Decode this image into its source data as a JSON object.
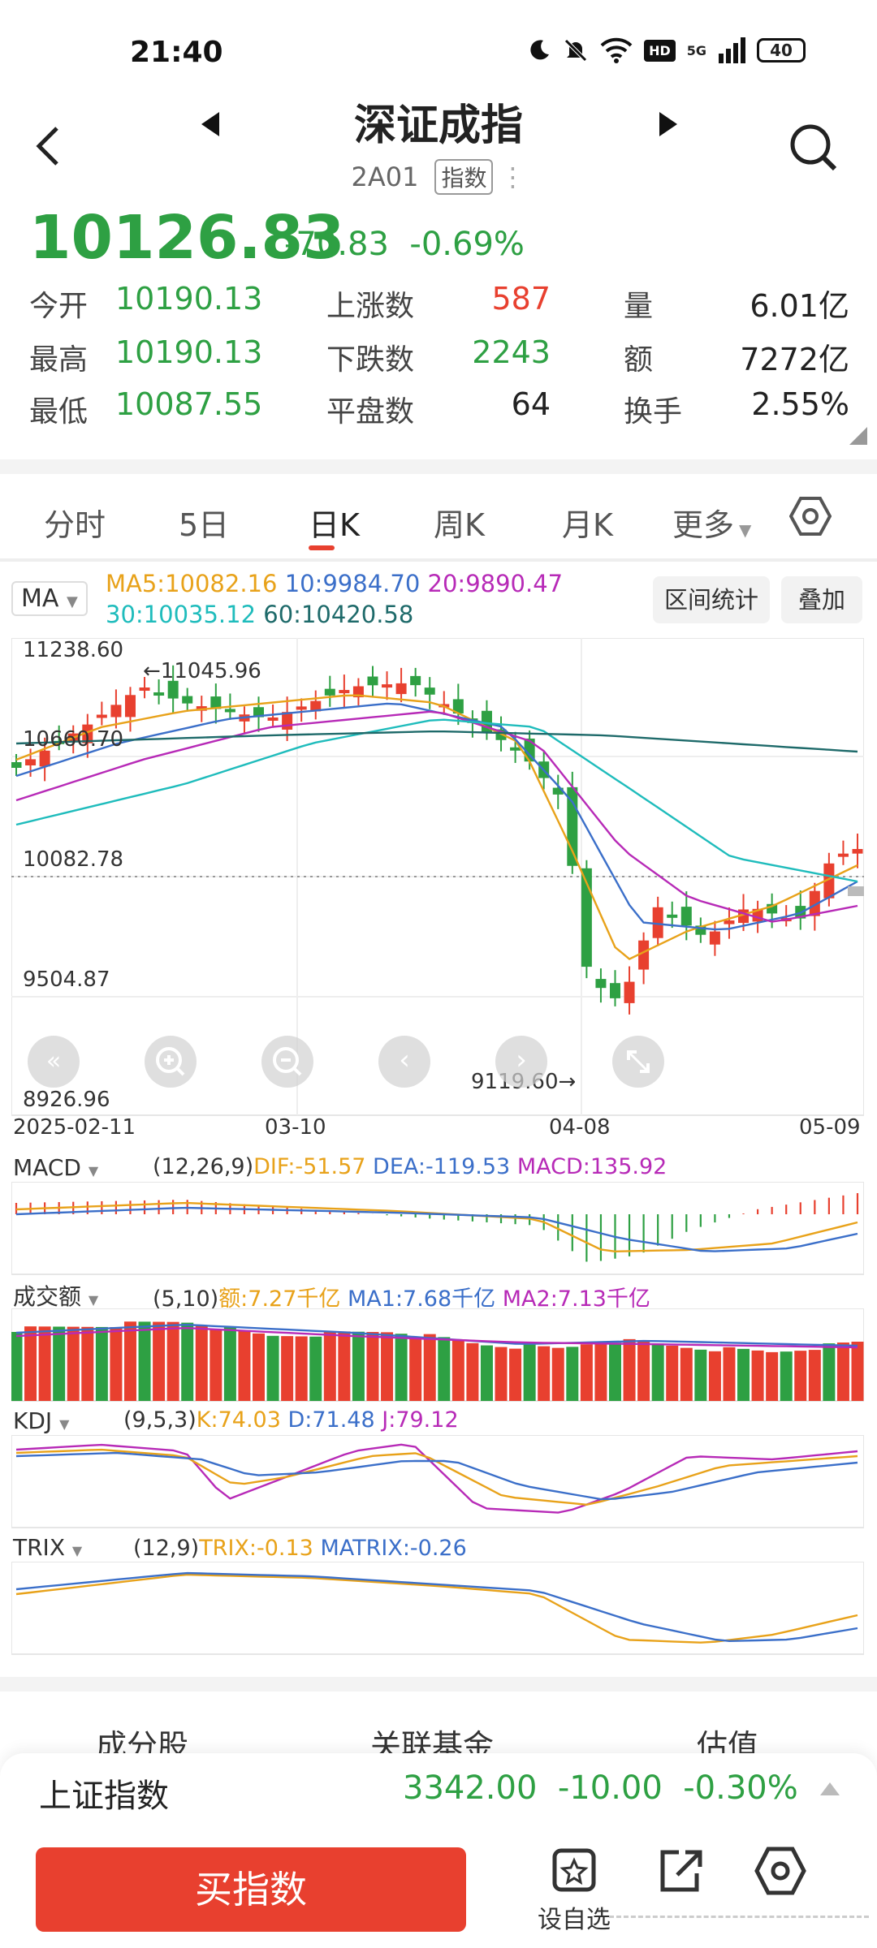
{
  "status": {
    "time": "21:40",
    "battery": "40",
    "hd": "HD",
    "net": "5G"
  },
  "header": {
    "title": "深证成指",
    "code": "2A01",
    "tag": "指数"
  },
  "price": {
    "last": "10126.83",
    "change": "-70.83",
    "change_pct": "-0.69%"
  },
  "stats": [
    {
      "label": "今开",
      "value": "10190.13"
    },
    {
      "label": "最高",
      "value": "10190.13"
    },
    {
      "label": "最低",
      "value": "10087.55"
    },
    {
      "label": "上涨数",
      "value": "587"
    },
    {
      "label": "下跌数",
      "value": "2243"
    },
    {
      "label": "平盘数",
      "value": "64"
    },
    {
      "label": "量",
      "value": "6.01亿"
    },
    {
      "label": "额",
      "value": "7272亿"
    },
    {
      "label": "换手",
      "value": "2.55%"
    }
  ],
  "tabs": [
    "分时",
    "5日",
    "日K",
    "周K",
    "月K",
    "更多"
  ],
  "active_tab": 2,
  "ma": {
    "selector": "MA",
    "ma5": "MA5:10082.16",
    "ma10": "10:9984.70",
    "ma20": "20:9890.47",
    "ma30": "30:10035.12",
    "ma60": "60:10420.58",
    "range_btn": "区间统计",
    "overlay_btn": "叠加"
  },
  "kline": {
    "y_labels": [
      "11238.60",
      "10660.70",
      "10082.78",
      "9504.87",
      "8926.96"
    ],
    "x_labels": [
      "2025-02-11",
      "03-10",
      "04-08",
      "05-09"
    ],
    "high_mark": "←11045.96",
    "low_mark": "9119.60→"
  },
  "chart_data": {
    "type": "candlestick",
    "ylim": [
      8926.96,
      11238.6
    ],
    "x_ticks": [
      "2025-02-11",
      "03-10",
      "04-08",
      "05-09"
    ],
    "annotations": [
      {
        "label": "11045.96"
      },
      {
        "label": "9119.60"
      }
    ],
    "last": 10126.83
  },
  "macd": {
    "selector": "MACD",
    "params": "(12,26,9)",
    "dif": "DIF:-51.57",
    "dea": "DEA:-119.53",
    "macd": "MACD:135.92"
  },
  "volume": {
    "selector": "成交额",
    "params": "(5,10)",
    "amount": "额:7.27千亿",
    "ma1": "MA1:7.68千亿",
    "ma2": "MA2:7.13千亿"
  },
  "kdj": {
    "selector": "KDJ",
    "params": "(9,5,3)",
    "k": "K:74.03",
    "d": "D:71.48",
    "j": "J:79.12"
  },
  "trix": {
    "selector": "TRIX",
    "params": "(12,9)",
    "trix": "TRIX:-0.13",
    "matrix": "MATRIX:-0.26"
  },
  "below_tabs": [
    "成分股",
    "关联基金",
    "估值"
  ],
  "bottom": {
    "index_name": "上证指数",
    "index_value": "3342.00",
    "index_change": "-10.00",
    "index_pct": "-0.30%",
    "buy_label": "买指数",
    "fav_label": "设自选"
  }
}
